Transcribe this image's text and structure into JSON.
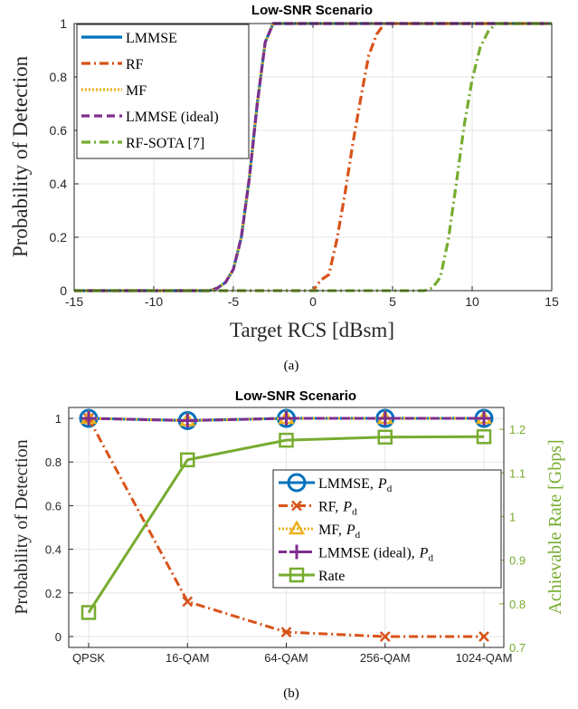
{
  "chart_data": [
    {
      "type": "line",
      "title": "Low-SNR Scenario",
      "xlabel": "Target RCS [dBsm]",
      "ylabel": "Probability of Detection",
      "xlim": [
        -15,
        15
      ],
      "ylim": [
        0,
        1
      ],
      "xticks": [
        "-15",
        "-10",
        "-5",
        "0",
        "5",
        "10",
        "15"
      ],
      "yticks": [
        "0",
        "0.2",
        "0.4",
        "0.6",
        "0.8",
        "1"
      ],
      "grid": true,
      "legend_position": "top-left",
      "caption": "(a)",
      "series": [
        {
          "name": "LMMSE",
          "color": "#0072BD",
          "style": "solid",
          "x": [
            -15,
            -6.5,
            -6,
            -5.5,
            -5,
            -4.5,
            -4,
            -3.5,
            -3,
            -2.5,
            15
          ],
          "y": [
            0,
            0,
            0.01,
            0.03,
            0.08,
            0.2,
            0.42,
            0.7,
            0.93,
            1,
            1
          ]
        },
        {
          "name": "RF",
          "color": "#D95319",
          "style": "dashdot",
          "x": [
            -15,
            0,
            0.5,
            1,
            1.5,
            2,
            2.5,
            3,
            3.5,
            4,
            4.5,
            5,
            15
          ],
          "y": [
            0,
            0,
            0.04,
            0.06,
            0.19,
            0.36,
            0.55,
            0.72,
            0.88,
            0.96,
            1,
            1,
            1
          ]
        },
        {
          "name": "MF",
          "color": "#EDB120",
          "style": "dotted",
          "x": [
            -15,
            -6.5,
            -6,
            -5.5,
            -5,
            -4.5,
            -4,
            -3.5,
            -3,
            -2.5,
            15
          ],
          "y": [
            0,
            0,
            0.01,
            0.03,
            0.08,
            0.2,
            0.42,
            0.7,
            0.93,
            1,
            1
          ]
        },
        {
          "name": "LMMSE (ideal)",
          "color": "#7E2F8E",
          "style": "dashed",
          "x": [
            -15,
            -6.5,
            -6,
            -5.5,
            -5,
            -4.5,
            -4,
            -3.5,
            -3,
            -2.5,
            15
          ],
          "y": [
            0,
            0,
            0.01,
            0.03,
            0.08,
            0.2,
            0.42,
            0.7,
            0.93,
            1,
            1
          ]
        },
        {
          "name": "RF-SOTA [7]",
          "color": "#77AC30",
          "style": "dashdot",
          "x": [
            -15,
            7,
            7.5,
            8,
            8.5,
            9,
            9.5,
            10,
            10.5,
            11,
            11.5,
            15
          ],
          "y": [
            0,
            0,
            0.01,
            0.05,
            0.19,
            0.4,
            0.62,
            0.79,
            0.91,
            0.97,
            1,
            1
          ]
        }
      ]
    },
    {
      "type": "line",
      "title": "Low-SNR Scenario",
      "ylabel": "Probability of Detection",
      "ylabel_right": "Achievable Rate [Gbps]",
      "categories": [
        "QPSK",
        "16-QAM",
        "64-QAM",
        "256-QAM",
        "1024-QAM"
      ],
      "ylim": [
        -0.05,
        1.05
      ],
      "yticks": [
        "0",
        "0.2",
        "0.4",
        "0.6",
        "0.8",
        "1"
      ],
      "ylim_right": [
        0.7,
        1.25
      ],
      "yticks_right": [
        "0.7",
        "0.8",
        "0.9",
        "1",
        "1.1",
        "1.2"
      ],
      "grid": true,
      "legend_position": "center-right",
      "caption": "(b)",
      "series": [
        {
          "name": "LMMSE, P_d",
          "legend_main": "LMMSE,",
          "color": "#0072BD",
          "marker": "circle",
          "style": "solid",
          "axis": "left",
          "values": [
            1,
            0.99,
            1,
            1,
            1
          ]
        },
        {
          "name": "RF, P_d",
          "legend_main": "RF,",
          "color": "#D95319",
          "marker": "x",
          "style": "dashdot",
          "axis": "left",
          "values": [
            1,
            0.16,
            0.02,
            0.0,
            0.0
          ]
        },
        {
          "name": "MF, P_d",
          "legend_main": "MF,",
          "color": "#EDB120",
          "marker": "triangle",
          "style": "dotted",
          "axis": "left",
          "values": [
            1,
            0.99,
            1,
            1,
            1
          ]
        },
        {
          "name": "LMMSE (ideal), P_d",
          "legend_main": "LMMSE (ideal),",
          "color": "#7E2F8E",
          "marker": "plus",
          "style": "dashed",
          "axis": "left",
          "values": [
            1,
            0.99,
            1,
            1,
            1
          ]
        },
        {
          "name": "Rate",
          "legend_main": "Rate",
          "color": "#77AC30",
          "marker": "square",
          "style": "solid",
          "axis": "right",
          "values": [
            0.78,
            1.13,
            1.175,
            1.182,
            1.183
          ]
        }
      ],
      "legend_sym_main": "P",
      "legend_sym_sub": "d"
    }
  ]
}
